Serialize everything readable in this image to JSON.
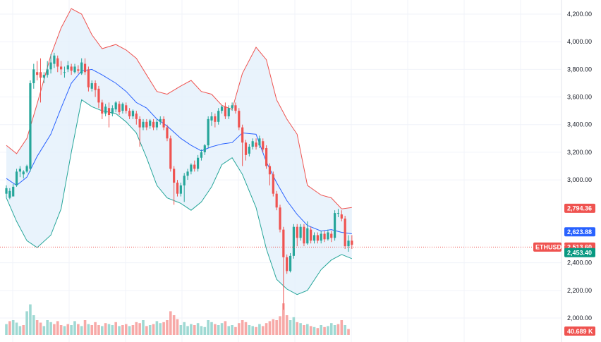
{
  "chart_data": {
    "type": "candlestick",
    "symbol": "ETHUSDT",
    "ylim": [
      1950,
      4280
    ],
    "y_ticks": [
      {
        "value": 4200,
        "label": "4,200.00"
      },
      {
        "value": 4000,
        "label": "4,000.00"
      },
      {
        "value": 3800,
        "label": "3,800.00"
      },
      {
        "value": 3600,
        "label": "3,600.00"
      },
      {
        "value": 3400,
        "label": "3,400.00"
      },
      {
        "value": 3200,
        "label": "3,200.00"
      },
      {
        "value": 3000,
        "label": "3,000.00"
      },
      {
        "value": 2400,
        "label": "2,400.00"
      },
      {
        "value": 2200,
        "label": "2,200.00"
      },
      {
        "value": 2000,
        "label": "2,000.00"
      }
    ],
    "grid": true,
    "colors": {
      "up": "#26a69a",
      "down": "#ef5350",
      "upper_band": "#ef5350",
      "basis": "#2962ff",
      "lower_band": "#26a69a",
      "band_fill": "#e3f0fb",
      "vol_up": "#9fd9d3",
      "vol_down": "#f7a9a7",
      "price_line": "#ef5350"
    },
    "price_labels": {
      "upper": {
        "value": 2794.36,
        "label": "2,794.36",
        "color": "#ef5350"
      },
      "basis": {
        "value": 2623.88,
        "label": "2,623.88",
        "color": "#2962ff"
      },
      "last": {
        "value": 2513.6,
        "label": "2,513.60",
        "color": "#ef5350"
      },
      "lower": {
        "value": 2453.4,
        "label": "2,453.40",
        "color": "#089981"
      },
      "volume": {
        "label": "40.689 K",
        "color": "#ef5350"
      }
    },
    "bollinger": {
      "upper": [
        [
          2900,
          3250
        ],
        [
          2870,
          3190
        ],
        [
          2880,
          3300
        ],
        [
          2970,
          3550
        ],
        [
          3060,
          3900
        ],
        [
          3200,
          4100
        ],
        [
          3340,
          4240
        ],
        [
          3440,
          4200
        ],
        [
          3550,
          4050
        ],
        [
          3600,
          3950
        ],
        [
          3660,
          3980
        ],
        [
          3720,
          3940
        ],
        [
          3780,
          3880
        ],
        [
          3840,
          3760
        ],
        [
          3900,
          3640
        ],
        [
          3960,
          3620
        ],
        [
          4020,
          3680
        ],
        [
          4080,
          3720
        ],
        [
          4140,
          3640
        ],
        [
          4200,
          3620
        ],
        [
          4260,
          3540
        ],
        [
          4320,
          3510
        ],
        [
          4380,
          3770
        ],
        [
          4440,
          3960
        ],
        [
          4500,
          3870
        ],
        [
          4560,
          3580
        ],
        [
          4620,
          3440
        ],
        [
          4680,
          3330
        ],
        [
          4740,
          2960
        ],
        [
          4800,
          2890
        ],
        [
          4860,
          2870
        ],
        [
          4880,
          2790
        ],
        [
          4920,
          2800
        ]
      ],
      "basis": [
        [
          2900,
          3010
        ],
        [
          2870,
          2960
        ],
        [
          2880,
          3020
        ],
        [
          2970,
          3170
        ],
        [
          3060,
          3330
        ],
        [
          3200,
          3520
        ],
        [
          3340,
          3700
        ],
        [
          3440,
          3790
        ],
        [
          3550,
          3800
        ],
        [
          3600,
          3760
        ],
        [
          3660,
          3700
        ],
        [
          3720,
          3640
        ],
        [
          3780,
          3560
        ],
        [
          3840,
          3520
        ],
        [
          3900,
          3440
        ],
        [
          3960,
          3390
        ],
        [
          4020,
          3300
        ],
        [
          4080,
          3250
        ],
        [
          4140,
          3210
        ],
        [
          4200,
          3240
        ],
        [
          4260,
          3260
        ],
        [
          4320,
          3270
        ],
        [
          4380,
          3340
        ],
        [
          4440,
          3330
        ],
        [
          4500,
          3130
        ],
        [
          4560,
          2980
        ],
        [
          4620,
          2850
        ],
        [
          4680,
          2750
        ],
        [
          4740,
          2670
        ],
        [
          4800,
          2630
        ],
        [
          4860,
          2640
        ],
        [
          4880,
          2620
        ],
        [
          4920,
          2610
        ]
      ],
      "lower": [
        [
          2900,
          2870
        ],
        [
          2870,
          2700
        ],
        [
          2880,
          2560
        ],
        [
          2970,
          2510
        ],
        [
          3060,
          2600
        ],
        [
          3200,
          2790
        ],
        [
          3340,
          3200
        ],
        [
          3440,
          3580
        ],
        [
          3550,
          3530
        ],
        [
          3600,
          3500
        ],
        [
          3660,
          3480
        ],
        [
          3720,
          3420
        ],
        [
          3780,
          3340
        ],
        [
          3840,
          3160
        ],
        [
          3900,
          2960
        ],
        [
          3960,
          2870
        ],
        [
          4020,
          2830
        ],
        [
          4080,
          2780
        ],
        [
          4140,
          2840
        ],
        [
          4200,
          2950
        ],
        [
          4260,
          3110
        ],
        [
          4320,
          3160
        ],
        [
          4380,
          3040
        ],
        [
          4440,
          2800
        ],
        [
          4500,
          2500
        ],
        [
          4560,
          2280
        ],
        [
          4620,
          2210
        ],
        [
          4680,
          2170
        ],
        [
          4740,
          2200
        ],
        [
          4800,
          2350
        ],
        [
          4860,
          2420
        ],
        [
          4880,
          2460
        ],
        [
          4920,
          2430
        ]
      ]
    },
    "candles": [
      [
        2900,
        2940,
        2870,
        2960
      ],
      [
        2870,
        2920,
        2860,
        2940
      ],
      [
        2880,
        2950,
        2900,
        2970
      ],
      [
        2960,
        3060,
        2950,
        3080
      ],
      [
        3060,
        3080,
        3020,
        3100
      ],
      [
        3040,
        3060,
        3010,
        3070
      ],
      [
        3060,
        3100,
        3050,
        3110
      ],
      [
        3080,
        3700,
        3060,
        3720
      ],
      [
        3700,
        3800,
        3660,
        3840
      ],
      [
        3780,
        3760,
        3720,
        3860
      ],
      [
        3780,
        3740,
        3560,
        3880
      ],
      [
        3740,
        3760,
        3700,
        3780
      ],
      [
        3760,
        3800,
        3740,
        3860
      ],
      [
        3800,
        3850,
        3770,
        3910
      ],
      [
        3840,
        3900,
        3810,
        3920
      ],
      [
        3880,
        3820,
        3780,
        3900
      ],
      [
        3820,
        3800,
        3760,
        3860
      ],
      [
        3780,
        3780,
        3740,
        3820
      ],
      [
        3800,
        3830,
        3780,
        3860
      ],
      [
        3820,
        3790,
        3760,
        3840
      ],
      [
        3780,
        3820,
        3770,
        3840
      ],
      [
        3800,
        3790,
        3770,
        3830
      ],
      [
        3770,
        3850,
        3760,
        3880
      ],
      [
        3840,
        3780,
        3760,
        3880
      ],
      [
        3800,
        3670,
        3640,
        3820
      ],
      [
        3660,
        3700,
        3640,
        3720
      ],
      [
        3700,
        3650,
        3600,
        3720
      ],
      [
        3660,
        3560,
        3520,
        3680
      ],
      [
        3560,
        3480,
        3440,
        3580
      ],
      [
        3480,
        3530,
        3460,
        3550
      ],
      [
        3520,
        3470,
        3380,
        3560
      ],
      [
        3480,
        3520,
        3460,
        3540
      ],
      [
        3510,
        3560,
        3490,
        3570
      ],
      [
        3550,
        3490,
        3470,
        3570
      ],
      [
        3500,
        3550,
        3480,
        3560
      ],
      [
        3540,
        3500,
        3480,
        3560
      ],
      [
        3500,
        3460,
        3440,
        3520
      ],
      [
        3460,
        3500,
        3440,
        3510
      ],
      [
        3480,
        3440,
        3400,
        3500
      ],
      [
        3440,
        3380,
        3240,
        3460
      ],
      [
        3380,
        3420,
        3360,
        3440
      ],
      [
        3420,
        3380,
        3360,
        3440
      ],
      [
        3390,
        3430,
        3370,
        3440
      ],
      [
        3420,
        3380,
        3360,
        3440
      ],
      [
        3380,
        3420,
        3360,
        3440
      ],
      [
        3420,
        3440,
        3400,
        3460
      ],
      [
        3440,
        3380,
        3360,
        3460
      ],
      [
        3380,
        3300,
        3280,
        3400
      ],
      [
        3300,
        3080,
        3060,
        3320
      ],
      [
        3080,
        2980,
        2820,
        3100
      ],
      [
        2980,
        2900,
        2880,
        3000
      ],
      [
        2900,
        2960,
        2880,
        2980
      ],
      [
        2960,
        3030,
        2840,
        3050
      ],
      [
        3030,
        3060,
        3000,
        3080
      ],
      [
        3060,
        3110,
        3040,
        3120
      ],
      [
        3110,
        3080,
        3060,
        3140
      ],
      [
        3080,
        3160,
        3060,
        3180
      ],
      [
        3160,
        3200,
        3140,
        3220
      ],
      [
        3200,
        3250,
        3180,
        3260
      ],
      [
        3250,
        3440,
        3230,
        3460
      ],
      [
        3430,
        3460,
        3390,
        3490
      ],
      [
        3460,
        3420,
        3380,
        3480
      ],
      [
        3420,
        3500,
        3400,
        3520
      ],
      [
        3500,
        3530,
        3480,
        3540
      ],
      [
        3530,
        3460,
        3440,
        3560
      ],
      [
        3460,
        3520,
        3440,
        3540
      ],
      [
        3520,
        3540,
        3500,
        3560
      ],
      [
        3540,
        3500,
        3480,
        3560
      ],
      [
        3500,
        3380,
        3360,
        3520
      ],
      [
        3380,
        3270,
        3100,
        3400
      ],
      [
        3270,
        3180,
        3140,
        3290
      ],
      [
        3190,
        3240,
        3170,
        3260
      ],
      [
        3240,
        3280,
        3220,
        3300
      ],
      [
        3270,
        3240,
        3220,
        3300
      ],
      [
        3250,
        3300,
        3230,
        3320
      ],
      [
        3280,
        3220,
        3200,
        3300
      ],
      [
        3230,
        3100,
        3080,
        3250
      ],
      [
        3100,
        3040,
        2960,
        3120
      ],
      [
        3040,
        2900,
        2880,
        3060
      ],
      [
        2900,
        2800,
        2780,
        2920
      ],
      [
        2800,
        2640,
        2620,
        2820
      ],
      [
        2640,
        2440,
        2060,
        2660
      ],
      [
        2440,
        2340,
        2320,
        2460
      ],
      [
        2340,
        2450,
        2330,
        2470
      ],
      [
        2450,
        2660,
        2430,
        2680
      ],
      [
        2660,
        2580,
        2520,
        2680
      ],
      [
        2580,
        2660,
        2560,
        2680
      ],
      [
        2660,
        2540,
        2520,
        2680
      ],
      [
        2540,
        2650,
        2530,
        2700
      ],
      [
        2640,
        2560,
        2540,
        2660
      ],
      [
        2560,
        2600,
        2540,
        2620
      ],
      [
        2600,
        2560,
        2540,
        2620
      ],
      [
        2560,
        2610,
        2540,
        2630
      ],
      [
        2610,
        2570,
        2550,
        2630
      ],
      [
        2570,
        2620,
        2560,
        2640
      ],
      [
        2610,
        2580,
        2550,
        2630
      ],
      [
        2580,
        2760,
        2560,
        2780
      ],
      [
        2760,
        2760,
        2730,
        2790
      ],
      [
        2750,
        2720,
        2700,
        2780
      ],
      [
        2720,
        2520,
        2500,
        2740
      ],
      [
        2520,
        2560,
        2480,
        2600
      ],
      [
        2560,
        2530,
        2500,
        2600
      ]
    ],
    "volume": [
      [
        22,
        1
      ],
      [
        28,
        0
      ],
      [
        30,
        1
      ],
      [
        25,
        1
      ],
      [
        18,
        1
      ],
      [
        20,
        0
      ],
      [
        48,
        1
      ],
      [
        62,
        1
      ],
      [
        40,
        1
      ],
      [
        30,
        0
      ],
      [
        25,
        0
      ],
      [
        18,
        1
      ],
      [
        30,
        1
      ],
      [
        26,
        1
      ],
      [
        22,
        0
      ],
      [
        28,
        0
      ],
      [
        20,
        0
      ],
      [
        18,
        1
      ],
      [
        22,
        0
      ],
      [
        20,
        1
      ],
      [
        28,
        1
      ],
      [
        22,
        0
      ],
      [
        18,
        1
      ],
      [
        30,
        0
      ],
      [
        22,
        1
      ],
      [
        20,
        0
      ],
      [
        26,
        0
      ],
      [
        20,
        0
      ],
      [
        18,
        1
      ],
      [
        24,
        0
      ],
      [
        22,
        1
      ],
      [
        20,
        1
      ],
      [
        26,
        0
      ],
      [
        18,
        1
      ],
      [
        20,
        0
      ],
      [
        22,
        0
      ],
      [
        18,
        1
      ],
      [
        20,
        0
      ],
      [
        26,
        0
      ],
      [
        24,
        0
      ],
      [
        30,
        1
      ],
      [
        18,
        0
      ],
      [
        20,
        1
      ],
      [
        22,
        0
      ],
      [
        28,
        1
      ],
      [
        24,
        1
      ],
      [
        26,
        0
      ],
      [
        30,
        0
      ],
      [
        48,
        0
      ],
      [
        40,
        0
      ],
      [
        32,
        0
      ],
      [
        20,
        1
      ],
      [
        26,
        1
      ],
      [
        18,
        1
      ],
      [
        22,
        1
      ],
      [
        20,
        0
      ],
      [
        24,
        1
      ],
      [
        18,
        1
      ],
      [
        16,
        1
      ],
      [
        30,
        1
      ],
      [
        26,
        1
      ],
      [
        22,
        0
      ],
      [
        20,
        1
      ],
      [
        24,
        1
      ],
      [
        28,
        0
      ],
      [
        18,
        1
      ],
      [
        20,
        1
      ],
      [
        16,
        0
      ],
      [
        24,
        0
      ],
      [
        30,
        0
      ],
      [
        26,
        0
      ],
      [
        20,
        1
      ],
      [
        18,
        1
      ],
      [
        16,
        0
      ],
      [
        22,
        1
      ],
      [
        18,
        0
      ],
      [
        24,
        0
      ],
      [
        28,
        0
      ],
      [
        32,
        0
      ],
      [
        30,
        0
      ],
      [
        38,
        0
      ],
      [
        64,
        0
      ],
      [
        40,
        0
      ],
      [
        30,
        1
      ],
      [
        36,
        1
      ],
      [
        26,
        0
      ],
      [
        24,
        1
      ],
      [
        20,
        0
      ],
      [
        22,
        1
      ],
      [
        18,
        0
      ],
      [
        16,
        1
      ],
      [
        14,
        0
      ],
      [
        20,
        1
      ],
      [
        16,
        0
      ],
      [
        18,
        1
      ],
      [
        24,
        1
      ],
      [
        20,
        1
      ],
      [
        22,
        0
      ],
      [
        30,
        0
      ],
      [
        20,
        1
      ],
      [
        12,
        0
      ]
    ]
  }
}
